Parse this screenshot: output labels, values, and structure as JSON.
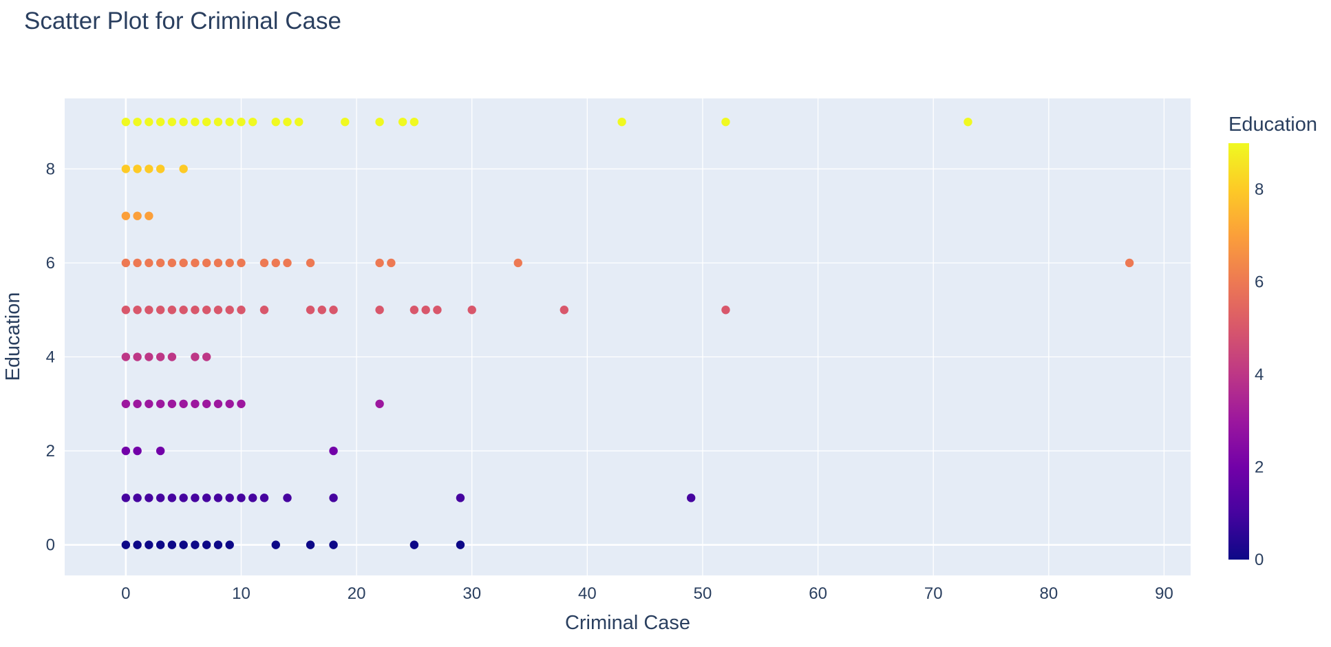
{
  "chart_data": {
    "type": "scatter",
    "title": "Scatter Plot for Criminal Case",
    "xlabel": "Criminal Case",
    "ylabel": "Education",
    "xlim": [
      -5.3,
      92.3
    ],
    "ylim": [
      -0.65,
      9.5
    ],
    "x_ticks": [
      "0",
      "10",
      "20",
      "30",
      "40",
      "50",
      "60",
      "70",
      "80",
      "90"
    ],
    "y_ticks": [
      "0",
      "2",
      "4",
      "6",
      "8"
    ],
    "grid": true,
    "background": "#e5ecf6",
    "gridline_color": "#ffffff",
    "colorbar": {
      "title": "Education",
      "range": [
        0,
        9
      ],
      "tick_labels": [
        "0",
        "2",
        "4",
        "6",
        "8"
      ],
      "colorscale": [
        "#0d0887",
        "#46039f",
        "#7201a8",
        "#9c179e",
        "#bd3786",
        "#d8576b",
        "#ed7953",
        "#fb9f3a",
        "#fdca26",
        "#f0f921"
      ]
    },
    "points": [
      {
        "y": 9,
        "x": [
          0,
          1,
          2,
          3,
          4,
          5,
          6,
          7,
          8,
          9,
          10,
          11,
          13,
          14,
          15,
          19,
          22,
          24,
          25,
          43,
          52,
          73
        ]
      },
      {
        "y": 8,
        "x": [
          0,
          1,
          2,
          3,
          5
        ]
      },
      {
        "y": 7,
        "x": [
          0,
          1,
          2
        ]
      },
      {
        "y": 6,
        "x": [
          0,
          1,
          2,
          3,
          4,
          5,
          6,
          7,
          8,
          9,
          10,
          12,
          13,
          14,
          16,
          22,
          23,
          34,
          87
        ]
      },
      {
        "y": 5,
        "x": [
          0,
          1,
          2,
          3,
          4,
          5,
          6,
          7,
          8,
          9,
          10,
          12,
          16,
          17,
          18,
          22,
          25,
          26,
          27,
          30,
          38,
          52
        ]
      },
      {
        "y": 4,
        "x": [
          0,
          1,
          2,
          3,
          4,
          6,
          7
        ]
      },
      {
        "y": 3,
        "x": [
          0,
          1,
          2,
          3,
          4,
          5,
          6,
          7,
          8,
          9,
          10,
          22
        ]
      },
      {
        "y": 2,
        "x": [
          0,
          1,
          3,
          18
        ]
      },
      {
        "y": 1,
        "x": [
          0,
          1,
          2,
          3,
          4,
          5,
          6,
          7,
          8,
          9,
          10,
          11,
          12,
          14,
          18,
          29,
          49
        ]
      },
      {
        "y": 0,
        "x": [
          0,
          1,
          2,
          3,
          4,
          5,
          6,
          7,
          8,
          9,
          13,
          16,
          18,
          25,
          29
        ]
      }
    ]
  }
}
